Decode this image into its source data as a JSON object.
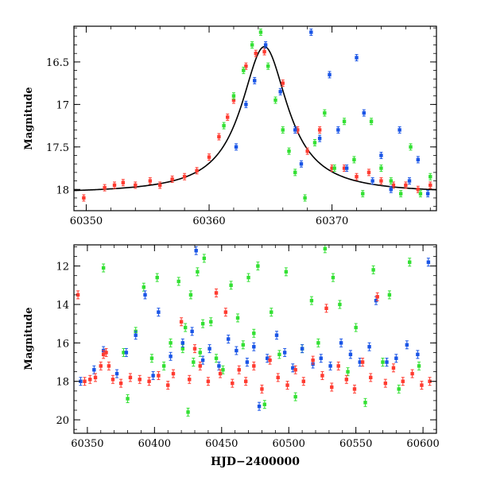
{
  "colors": {
    "red": "#ff3b30",
    "green": "#33e033",
    "blue": "#1a55e6",
    "model": "#000000"
  },
  "chart_data": [
    {
      "type": "scatter",
      "title": "",
      "xlabel": "",
      "ylabel": "Magnitude",
      "xlim": [
        60349,
        60378.5
      ],
      "ylim": [
        18.25,
        16.08
      ],
      "y_inverted": true,
      "grid": false,
      "x_ticks": [
        60350,
        60360,
        60370
      ],
      "y_ticks": [
        16.5,
        17,
        17.5,
        18
      ],
      "x_tick_labels": [
        "60350",
        "60360",
        "60370"
      ],
      "y_tick_labels": [
        "16.5",
        "17",
        "17.5",
        "18"
      ],
      "model_curve": {
        "type": "line",
        "peak_x": 60364.5,
        "peak_y": 16.32,
        "baseline_y": 18.05,
        "width": 2.3
      },
      "series": [
        {
          "color": "red",
          "x": [
            60349.8,
            60351.5,
            60352.3,
            60353.0,
            60354.0,
            60355.2,
            60356.0,
            60357.0,
            60358.0,
            60359.0,
            60360.0,
            60360.8,
            60361.5,
            60362.0,
            60363.0,
            60363.8,
            60364.5,
            60366.0,
            60367.2,
            60368.0,
            60369.0,
            60370.0,
            60371.0,
            60372.0,
            60373.0,
            60374.0,
            60375.0,
            60376.0,
            60377.0,
            60378.0
          ],
          "y": [
            18.1,
            17.98,
            17.95,
            17.92,
            17.95,
            17.9,
            17.95,
            17.88,
            17.85,
            17.78,
            17.62,
            17.38,
            17.15,
            16.95,
            16.55,
            16.4,
            16.38,
            16.75,
            17.3,
            17.55,
            17.3,
            17.75,
            17.75,
            17.85,
            17.8,
            17.9,
            17.95,
            17.95,
            18.0,
            17.95
          ]
        },
        {
          "color": "green",
          "x": [
            60361.2,
            60362.0,
            60362.8,
            60363.5,
            60364.2,
            60364.8,
            60365.4,
            60366.0,
            60366.5,
            60367.0,
            60367.8,
            60368.6,
            60369.4,
            60370.2,
            60371.0,
            60371.8,
            60372.5,
            60373.2,
            60374.0,
            60374.8,
            60375.6,
            60376.4,
            60377.2,
            60378.0
          ],
          "y": [
            17.25,
            16.9,
            16.6,
            16.3,
            16.15,
            16.55,
            16.95,
            17.3,
            17.55,
            17.8,
            18.1,
            17.45,
            17.1,
            17.75,
            17.2,
            17.65,
            18.05,
            17.2,
            17.75,
            17.9,
            18.05,
            17.5,
            18.05,
            17.85
          ]
        },
        {
          "color": "blue",
          "x": [
            60362.2,
            60363.0,
            60363.7,
            60364.6,
            60365.8,
            60367.0,
            60367.5,
            60368.3,
            60369.0,
            60369.8,
            60370.5,
            60371.2,
            60372.0,
            60372.6,
            60373.3,
            60374.0,
            60374.8,
            60375.5,
            60376.3,
            60377.0,
            60377.8
          ],
          "y": [
            17.5,
            17.0,
            16.72,
            16.3,
            16.85,
            17.3,
            17.7,
            16.15,
            17.4,
            16.65,
            17.3,
            17.75,
            16.45,
            17.1,
            17.9,
            17.6,
            18.0,
            17.3,
            17.9,
            17.65,
            18.05
          ]
        }
      ]
    },
    {
      "type": "scatter",
      "title": "",
      "xlabel": "HJD−2400000",
      "ylabel": "Magnitude",
      "xlim": [
        60340,
        60610
      ],
      "ylim": [
        20.7,
        10.9
      ],
      "y_inverted": true,
      "grid": false,
      "x_ticks": [
        60350,
        60400,
        60450,
        60500,
        60550,
        60600
      ],
      "y_ticks": [
        12,
        14,
        16,
        18,
        20
      ],
      "x_tick_labels": [
        "60350",
        "60400",
        "60450",
        "60500",
        "60550",
        "60600"
      ],
      "y_tick_labels": [
        "12",
        "14",
        "16",
        "18",
        "20"
      ],
      "series": [
        {
          "color": "green",
          "x": [
            60362,
            60377,
            60380,
            60386,
            60392,
            60398,
            60402,
            60407,
            60412,
            60418,
            60421,
            60423,
            60425,
            60427,
            60429,
            60432,
            60434,
            60436,
            60437,
            60442,
            60446,
            60451,
            60457,
            60462,
            60466,
            60470,
            60474,
            60477,
            60482,
            60487,
            60493,
            60498,
            60505,
            60510,
            60517,
            60522,
            60527,
            60533,
            60538,
            60544,
            60550,
            60557,
            60563,
            60570,
            60575,
            60582,
            60590,
            60597
          ],
          "y": [
            12.1,
            16.5,
            18.9,
            15.4,
            13.1,
            16.8,
            12.6,
            17.2,
            16.0,
            12.8,
            16.3,
            15.2,
            19.6,
            13.5,
            17.0,
            12.3,
            16.5,
            15.0,
            11.6,
            14.9,
            16.8,
            17.4,
            13.0,
            14.7,
            16.1,
            12.6,
            15.5,
            12.0,
            19.2,
            14.4,
            16.6,
            12.3,
            18.8,
            16.3,
            13.8,
            16.0,
            11.1,
            12.6,
            14.0,
            17.5,
            15.2,
            19.1,
            12.2,
            17.0,
            13.5,
            18.4,
            11.8,
            17.2
          ]
        },
        {
          "color": "blue",
          "x": [
            60345,
            60355,
            60362,
            60372,
            60379,
            60386,
            60393,
            60399,
            60403,
            60412,
            60421,
            60428,
            60431,
            60436,
            60441,
            60448,
            60455,
            60461,
            60469,
            60474,
            60478,
            60484,
            60491,
            60497,
            60503,
            60510,
            60518,
            60524,
            60531,
            60539,
            60546,
            60553,
            60560,
            60565,
            60573,
            60580,
            60588,
            60596,
            60604
          ],
          "y": [
            18.0,
            17.4,
            16.4,
            17.6,
            16.5,
            15.6,
            13.5,
            17.7,
            14.4,
            16.7,
            16.0,
            15.4,
            11.2,
            16.9,
            16.3,
            17.2,
            15.8,
            16.4,
            17.0,
            16.2,
            19.3,
            16.8,
            15.6,
            16.5,
            17.3,
            16.3,
            17.1,
            16.8,
            17.2,
            16.0,
            16.6,
            17.0,
            16.2,
            13.8,
            17.0,
            16.8,
            16.1,
            16.6,
            11.8
          ]
        },
        {
          "color": "red",
          "x": [
            60343,
            60348,
            60352,
            60356,
            60360,
            60362,
            60364,
            60366,
            60369,
            60375,
            60382,
            60389,
            60396,
            60403,
            60410,
            60414,
            60420,
            60426,
            60430,
            60434,
            60440,
            60446,
            60449,
            60453,
            60458,
            60463,
            60468,
            60474,
            60480,
            60486,
            60492,
            60499,
            60505,
            60511,
            60518,
            60525,
            60528,
            60532,
            60537,
            60543,
            60549,
            60555,
            60561,
            60566,
            60572,
            60578,
            60585,
            60592,
            60599,
            60605
          ],
          "y": [
            13.5,
            18.0,
            17.9,
            17.8,
            17.2,
            16.6,
            16.5,
            17.2,
            17.9,
            18.1,
            17.8,
            17.9,
            18.0,
            17.7,
            18.2,
            17.6,
            14.9,
            17.9,
            16.3,
            17.2,
            18.0,
            13.4,
            17.6,
            14.4,
            18.1,
            17.4,
            18.0,
            17.2,
            18.4,
            16.9,
            17.8,
            18.2,
            17.4,
            18.0,
            16.9,
            17.7,
            14.2,
            18.3,
            17.2,
            17.9,
            18.4,
            17.0,
            17.8,
            13.6,
            18.1,
            17.3,
            18.0,
            17.6,
            18.2,
            18.0
          ]
        }
      ]
    }
  ]
}
